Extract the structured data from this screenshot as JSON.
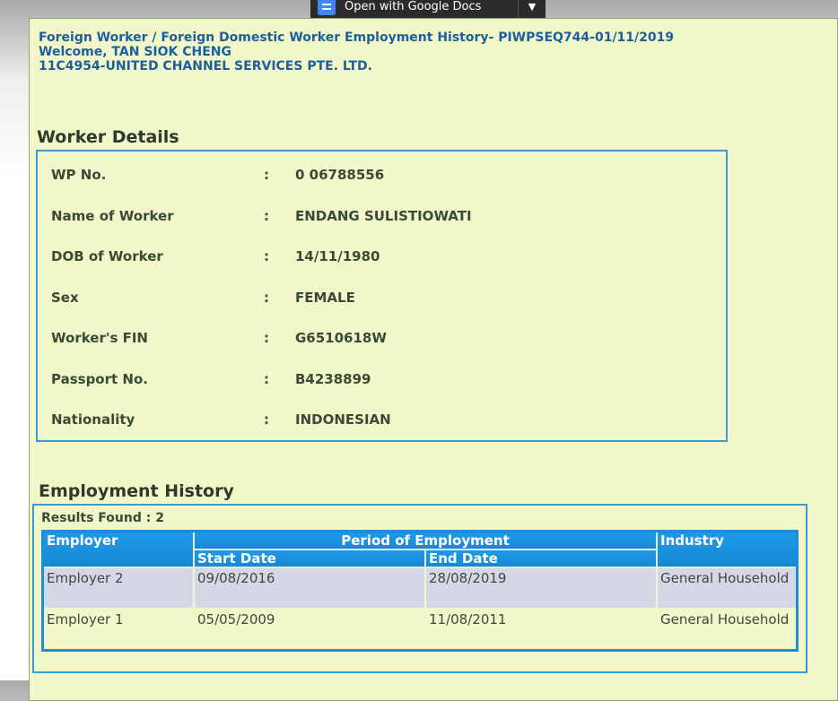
{
  "toolbar": {
    "open_label": "Open with Google Docs"
  },
  "header": {
    "title": "Foreign Worker / Foreign Domestic Worker Employment History- PIWPSEQ744-01/11/2019",
    "welcome": "Welcome, TAN SIOK CHENG",
    "company": "11C4954-UNITED CHANNEL SERVICES PTE. LTD."
  },
  "worker": {
    "heading": "Worker Details",
    "fields": [
      {
        "label": "WP No.",
        "value": "0 06788556"
      },
      {
        "label": "Name of Worker",
        "value": "ENDANG SULISTIOWATI"
      },
      {
        "label": "DOB of Worker",
        "value": "14/11/1980"
      },
      {
        "label": "Sex",
        "value": "FEMALE"
      },
      {
        "label": "Worker's FIN",
        "value": "G6510618W"
      },
      {
        "label": "Passport No.",
        "value": "B4238899"
      },
      {
        "label": "Nationality",
        "value": "INDONESIAN"
      }
    ],
    "colon": ":"
  },
  "history": {
    "heading": "Employment History",
    "results": "Results Found : 2",
    "columns": {
      "employer": "Employer",
      "period": "Period of Employment",
      "start": "Start Date",
      "end": "End Date",
      "industry": "Industry"
    },
    "rows": [
      {
        "employer": "Employer 2",
        "start": "09/08/2016",
        "end": "28/08/2019",
        "industry": "General Household"
      },
      {
        "employer": "Employer 1",
        "start": "05/05/2009",
        "end": "11/08/2011",
        "industry": "General Household"
      }
    ]
  }
}
